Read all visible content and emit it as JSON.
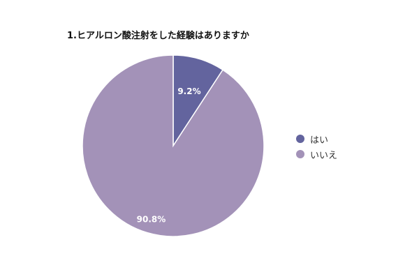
{
  "chart_data": {
    "type": "pie",
    "title": "1.ヒアルロン酸注射をした経験はありますか",
    "slices": [
      {
        "name": "はい",
        "value": 9.2,
        "label": "9.2%",
        "color": "#63649e"
      },
      {
        "name": "いいえ",
        "value": 90.8,
        "label": "90.8%",
        "color": "#a392b8"
      }
    ],
    "legend_position": "right"
  }
}
